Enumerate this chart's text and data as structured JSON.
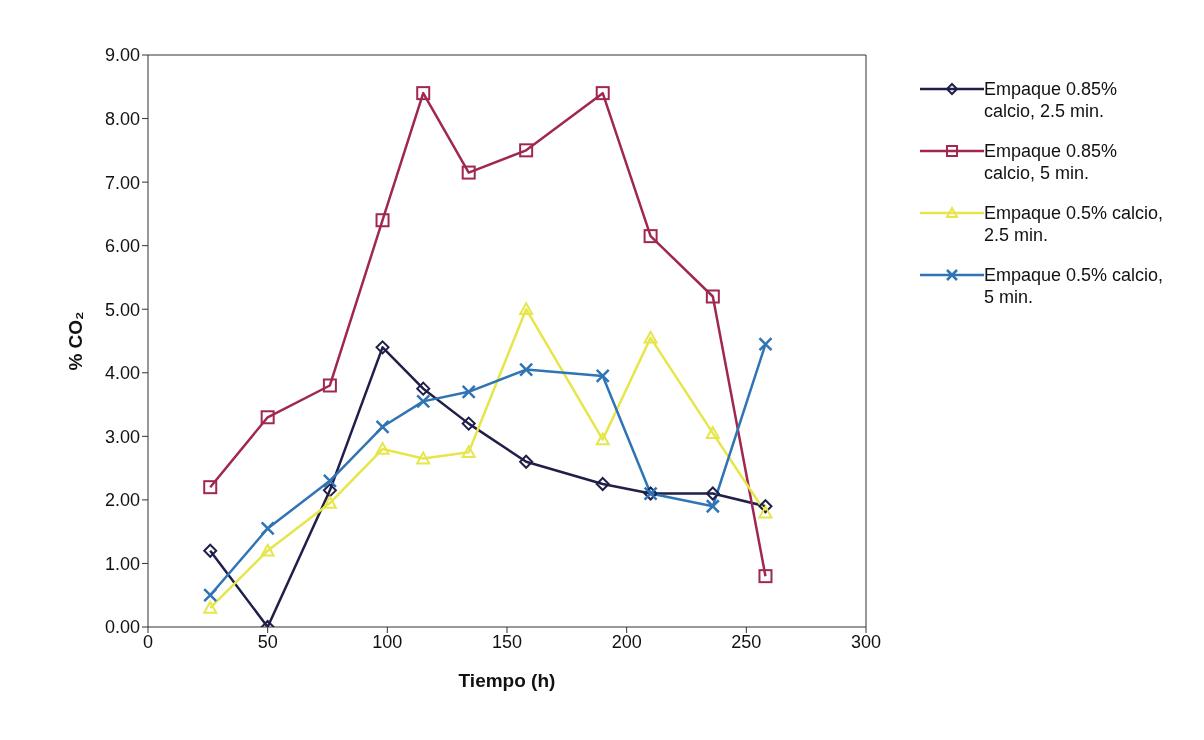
{
  "chart_data": {
    "type": "line",
    "xlabel": "Tiempo (h)",
    "ylabel": "% CO₂",
    "x": [
      26,
      50,
      76,
      98,
      115,
      134,
      158,
      190,
      210,
      236,
      258
    ],
    "series": [
      {
        "name": "Empaque 0.85% calcio, 2.5 min.",
        "color": "#1f1f4a",
        "marker": "diamond",
        "values": [
          1.2,
          0.0,
          2.15,
          4.4,
          3.75,
          3.2,
          2.6,
          2.25,
          2.1,
          2.1,
          1.9
        ]
      },
      {
        "name": "Empaque 0.85% calcio, 5 min.",
        "color": "#a0284f",
        "marker": "square",
        "values": [
          2.2,
          3.3,
          3.8,
          6.4,
          8.4,
          7.15,
          7.5,
          8.4,
          6.15,
          5.2,
          0.8
        ]
      },
      {
        "name": "Empaque 0.5% calcio, 2.5 min.",
        "color": "#e6e64a",
        "marker": "triangle",
        "values": [
          0.3,
          1.2,
          1.95,
          2.8,
          2.65,
          2.75,
          5.0,
          2.95,
          4.55,
          3.05,
          1.8
        ]
      },
      {
        "name": "Empaque 0.5% calcio, 5 min.",
        "color": "#2f75b5",
        "marker": "cross",
        "values": [
          0.5,
          1.55,
          2.3,
          3.15,
          3.55,
          3.7,
          4.05,
          3.95,
          2.1,
          1.9,
          4.45
        ]
      }
    ],
    "xlim": [
      0,
      300
    ],
    "xticks": [
      0,
      50,
      100,
      150,
      200,
      250,
      300
    ],
    "ylim": [
      0,
      9
    ],
    "yticks": [
      {
        "value": 0,
        "label": "0.00"
      },
      {
        "value": 1,
        "label": "1.00"
      },
      {
        "value": 2,
        "label": "2.00"
      },
      {
        "value": 3,
        "label": "3.00"
      },
      {
        "value": 4,
        "label": "4.00"
      },
      {
        "value": 5,
        "label": "5.00"
      },
      {
        "value": 6,
        "label": "6.00"
      },
      {
        "value": 7,
        "label": "7.00"
      },
      {
        "value": 8,
        "label": "8.00"
      },
      {
        "value": 9,
        "label": "9.00"
      }
    ],
    "grid": false,
    "legend": "right",
    "line_style": "solid"
  }
}
